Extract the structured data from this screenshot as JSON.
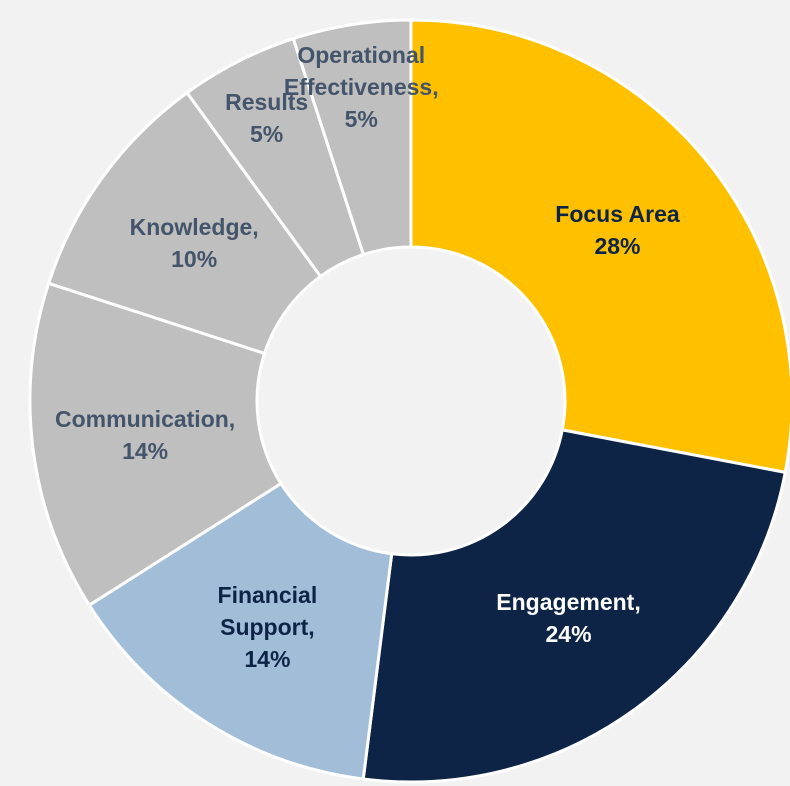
{
  "chart_data": {
    "type": "donut",
    "categories": [
      "Focus Area",
      "Engagement,",
      "Financial Support,",
      "Communication,",
      "Knowledge,",
      "Results",
      "Operational Effectiveness,"
    ],
    "values": [
      28,
      24,
      14,
      14,
      10,
      5,
      5
    ],
    "value_labels": [
      "28%",
      "24%",
      "14%",
      "14%",
      "10%",
      "5%",
      "5%"
    ],
    "colors": [
      "#ffc000",
      "#0e2446",
      "#a2bdd8",
      "#bfbfbf",
      "#bfbfbf",
      "#bfbfbf",
      "#bfbfbf"
    ],
    "label_colors": [
      "#0e2446",
      "#ffffff",
      "#0e2446",
      "#44546a",
      "#44546a",
      "#44546a",
      "#44546a"
    ]
  }
}
